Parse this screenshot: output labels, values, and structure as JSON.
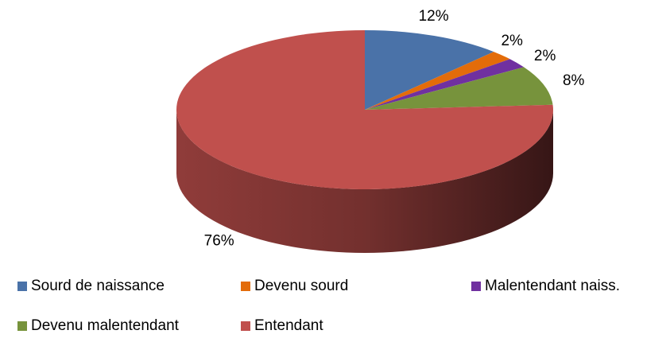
{
  "chart_data": {
    "type": "pie",
    "categories": [
      "Sourd de naissance",
      "Devenu sourd",
      "Malentendant naiss.",
      "Devenu malentendant",
      "Entendant"
    ],
    "values": [
      12,
      2,
      2,
      8,
      76
    ],
    "value_labels": [
      "12%",
      "2%",
      "2%",
      "8%",
      "76%"
    ],
    "colors": [
      "#4a72a8",
      "#e36c0a",
      "#7030a0",
      "#77933c",
      "#c0504d"
    ],
    "legend": "bottom"
  }
}
